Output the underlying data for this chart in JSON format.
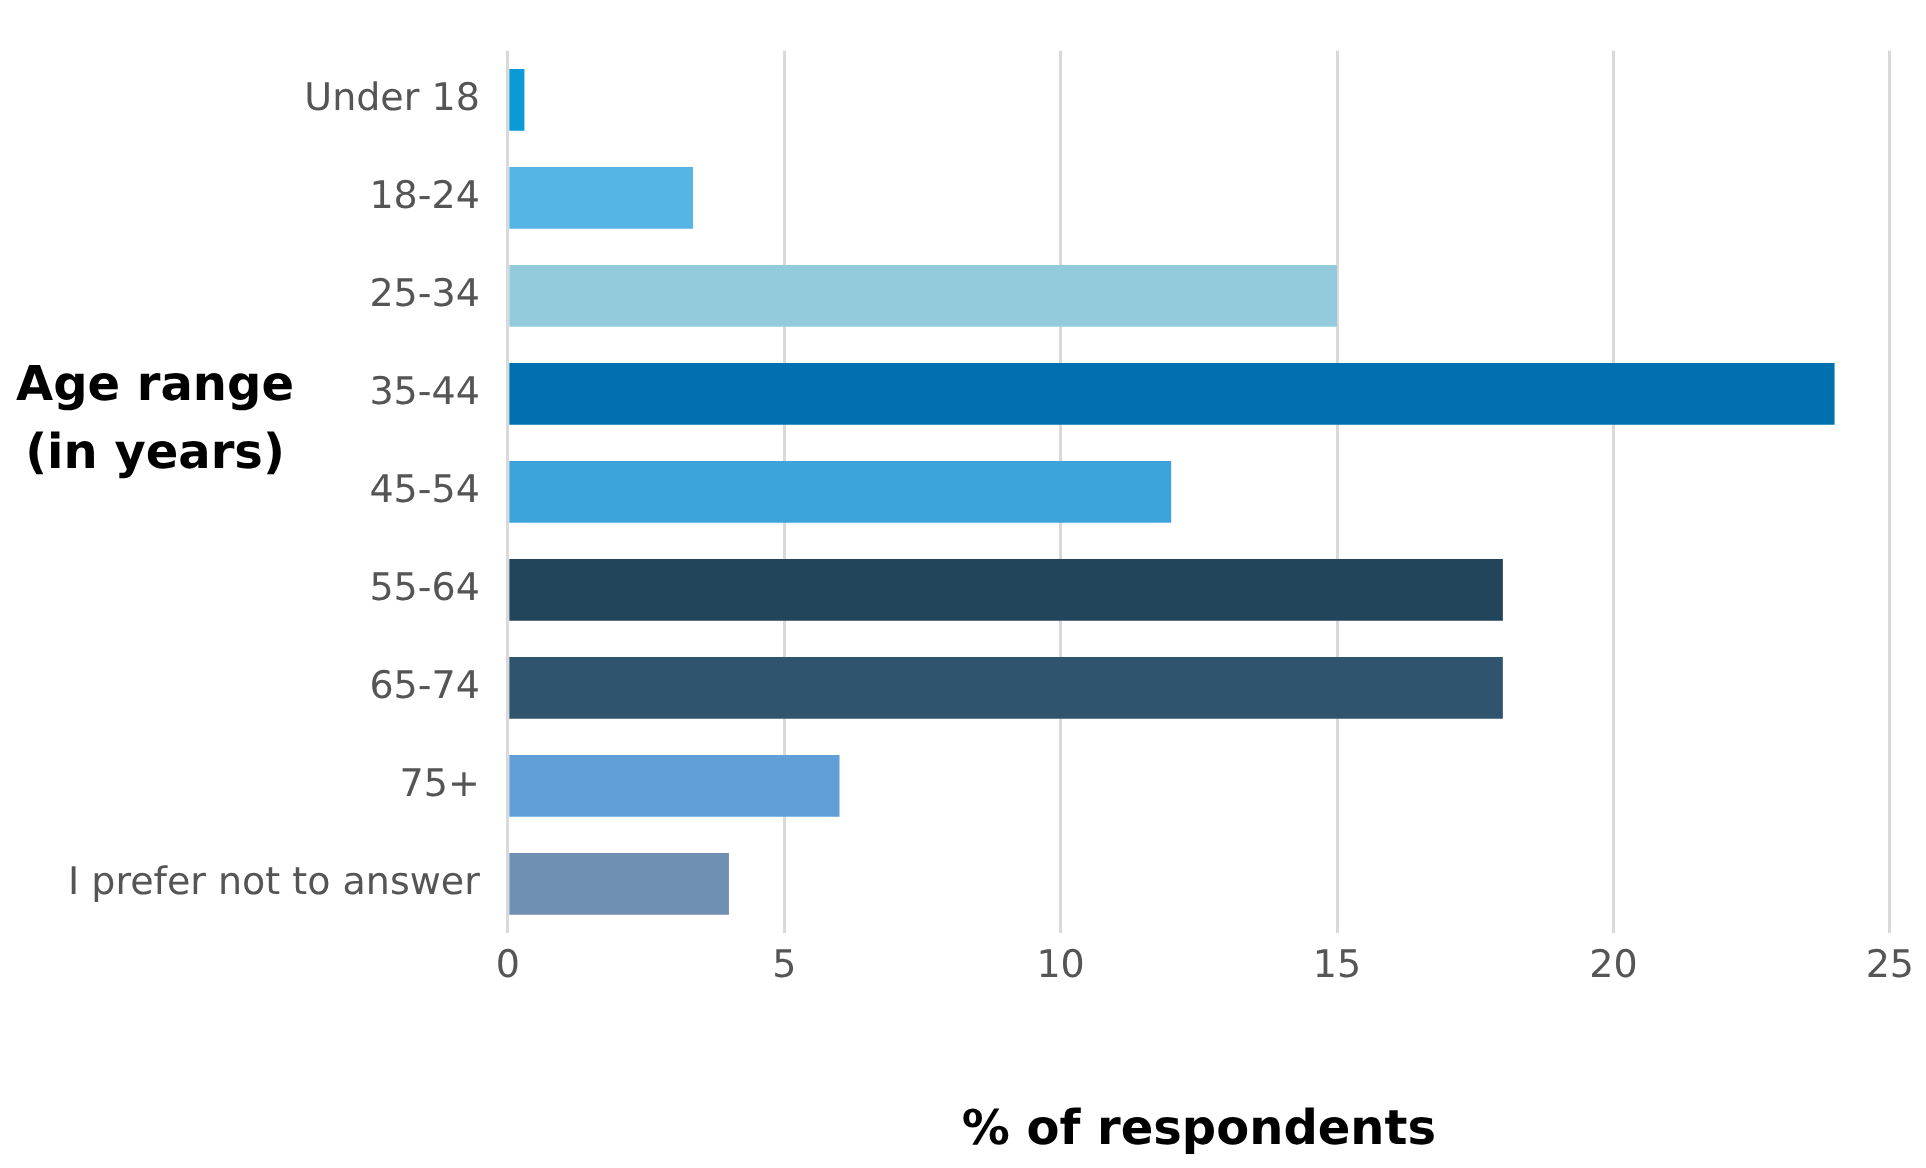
{
  "chart_data": {
    "type": "bar",
    "orientation": "horizontal",
    "xlabel": "% of respondents",
    "ylabel": "Age range (in years)",
    "categories": [
      "Under 18",
      "18-24",
      "25-34",
      "35-44",
      "45-54",
      "55-64",
      "65-74",
      "75+",
      "I prefer not to answer"
    ],
    "values": [
      0.3,
      3.35,
      15,
      24,
      12,
      18,
      18,
      6,
      4
    ],
    "colors": [
      "#0a9ad6",
      "#55b6e6",
      "#94cbdc",
      "#0070b0",
      "#3ca3db",
      "#23455c",
      "#30536e",
      "#609fd8",
      "#6f8fb3"
    ],
    "xlim": [
      0,
      25
    ],
    "xticks": [
      0,
      5,
      10,
      15,
      20,
      25
    ],
    "grid": "x",
    "legend": false
  }
}
